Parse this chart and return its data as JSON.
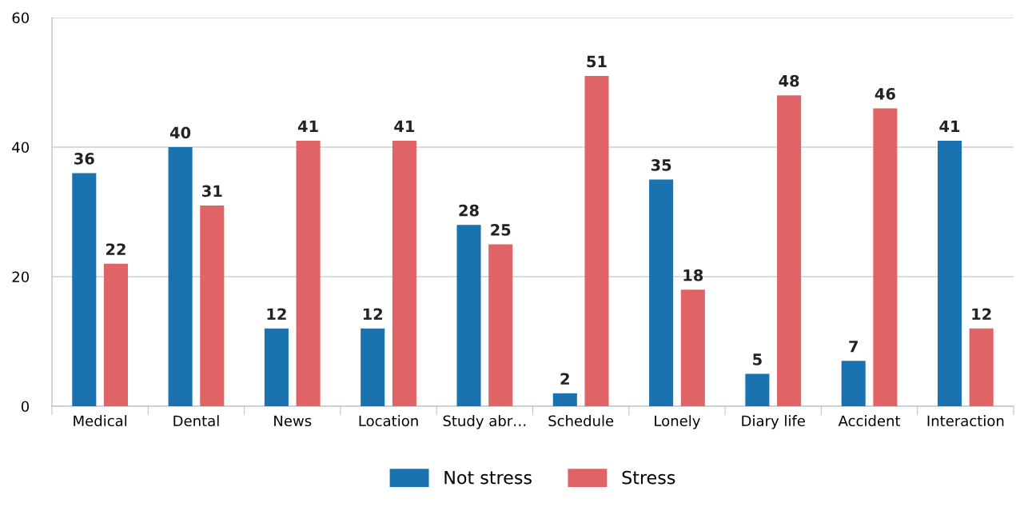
{
  "chart_data": {
    "type": "bar",
    "categories": [
      "Medical",
      "Dental",
      "News",
      "Location",
      "Study abr…",
      "Schedule",
      "Lonely",
      "Diary life",
      "Accident",
      "Interaction"
    ],
    "series": [
      {
        "name": "Not stress",
        "color": "#1a73b0",
        "values": [
          36,
          40,
          12,
          12,
          28,
          2,
          35,
          5,
          7,
          41
        ]
      },
      {
        "name": "Stress",
        "color": "#e06466",
        "values": [
          22,
          31,
          41,
          41,
          25,
          51,
          18,
          48,
          46,
          12
        ]
      }
    ],
    "ylim": [
      0,
      60
    ],
    "yticks": [
      0,
      20,
      40,
      60
    ],
    "grid": "y",
    "legend": "bottom",
    "data_labels": true
  }
}
